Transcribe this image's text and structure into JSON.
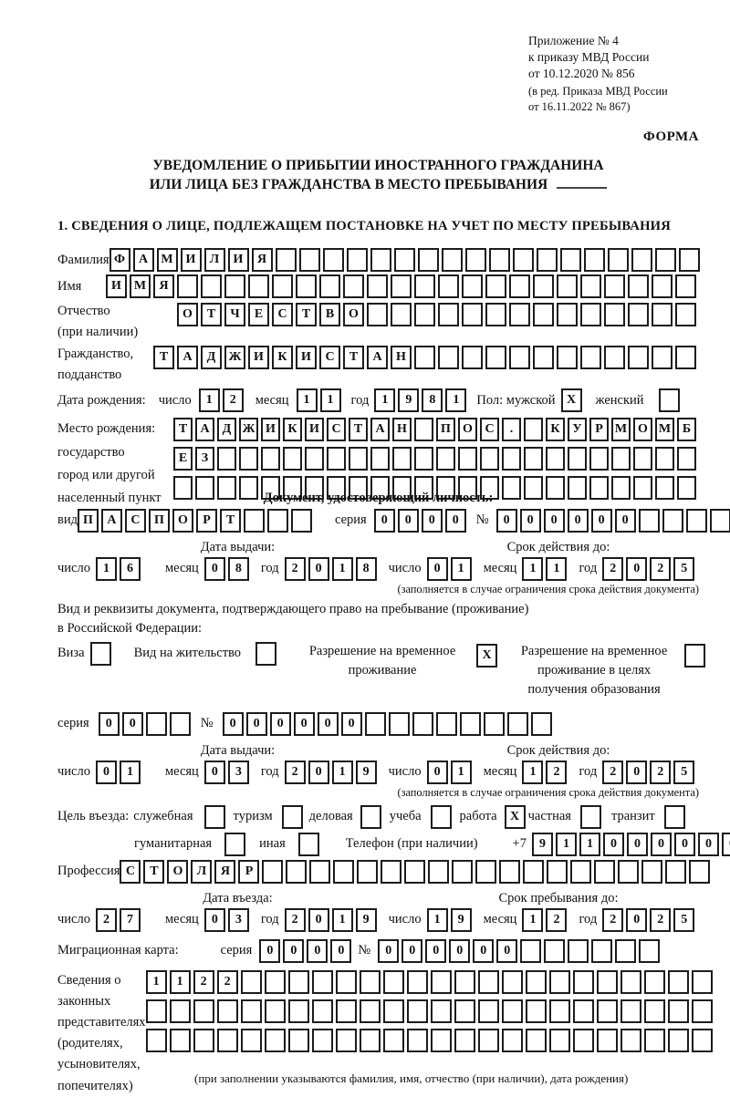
{
  "annex": {
    "lines": [
      "Приложение № 4",
      "к приказу МВД России",
      "от 10.12.2020 № 856",
      "(в ред. Приказа МВД России",
      "от 16.11.2022 № 867)"
    ],
    "form_caption": "ФОРМА"
  },
  "title": {
    "line1": "УВЕДОМЛЕНИЕ О ПРИБЫТИИ ИНОСТРАННОГО ГРАЖДАНИНА",
    "line2": "ИЛИ ЛИЦА БЕЗ ГРАЖДАНСТВА В МЕСТО ПРЕБЫВАНИЯ"
  },
  "section1_heading": "1. СВЕДЕНИЯ О ЛИЦЕ, ПОДЛЕЖАЩЕМ ПОСТАНОВКЕ НА УЧЕТ ПО МЕСТУ ПРЕБЫВАНИЯ",
  "labels": {
    "surname": "Фамилия",
    "name": "Имя",
    "patronymic": "Отчество",
    "patronymic_note": "(при наличии)",
    "citizenship1": "Гражданство,",
    "citizenship2": "подданство",
    "birth_date": "Дата рождения:",
    "day": "число",
    "month": "месяц",
    "year": "год",
    "sex": "Пол:",
    "male": "мужской",
    "female": "женский",
    "birth_place": "Место рождения:",
    "state": "государство",
    "city1": "город или другой",
    "city2": "населенный пункт",
    "identity_doc_heading": "Документ, удостоверяющий личность:",
    "kind": "вид",
    "series": "серия",
    "number": "№",
    "issue_date": "Дата выдачи:",
    "valid_until": "Срок действия до:",
    "valid_note": "(заполняется в случае ограничения срока действия документа)",
    "residence_doc1": "Вид и реквизиты документа, подтверждающего право на пребывание (проживание)",
    "residence_doc2": "в Российской Федерации:",
    "visa": "Виза",
    "residence_permit": "Вид на жительство",
    "temp_residence1": "Разрешение на временное",
    "temp_residence2": "проживание",
    "temp_residence_edu1": "Разрешение на временное",
    "temp_residence_edu2": "проживание в целях",
    "temp_residence_edu3": "получения образования",
    "entry_purpose": "Цель въезда:",
    "purpose_official": "служебная",
    "purpose_tourism": "туризм",
    "purpose_business": "деловая",
    "purpose_study": "учеба",
    "purpose_work": "работа",
    "purpose_private": "частная",
    "purpose_transit": "транзит",
    "purpose_humanitarian": "гуманитарная",
    "purpose_other": "иная",
    "phone": "Телефон (при наличии)",
    "phone_prefix": "+7",
    "profession": "Профессия",
    "entry_date": "Дата въезда:",
    "stay_until": "Срок пребывания до:",
    "migration_card": "Миграционная карта:",
    "representatives": [
      "Сведения о",
      "законных",
      "представителях",
      "(родителях,",
      "усыновителях,",
      "попечителях)"
    ],
    "representatives_note": "(при заполнении указываются фамилия, имя, отчество (при наличии), дата рождения)"
  },
  "rows": {
    "surname": {
      "len": 25,
      "value": "ФАМИЛИЯ"
    },
    "name": {
      "len": 25,
      "value": "ИМЯ"
    },
    "patronymic": {
      "len": 22,
      "value": "ОТЧЕСТВО"
    },
    "citizenship": {
      "len": 23,
      "value": "ТАДЖИКИСТАН"
    },
    "birth_day": {
      "len": 2,
      "value": "12"
    },
    "birth_month": {
      "len": 2,
      "value": "11"
    },
    "birth_year": {
      "len": 4,
      "value": "1981"
    },
    "sex_male": {
      "len": 1,
      "value": "X"
    },
    "sex_female": {
      "len": 1,
      "value": ""
    },
    "birth_place1": {
      "len": 24,
      "value": "ТАДЖИКИСТАН ПОС. КУРМОМБ"
    },
    "birth_place2": {
      "len": 24,
      "value": "ЕЗ"
    },
    "birth_place3": {
      "len": 24,
      "value": ""
    },
    "doc_kind": {
      "len": 10,
      "value": "ПАСПОРТ"
    },
    "doc_series": {
      "len": 4,
      "value": "0000"
    },
    "doc_number": {
      "len": 11,
      "value": "000000"
    },
    "doc_issue_day": {
      "len": 2,
      "value": "16"
    },
    "doc_issue_month": {
      "len": 2,
      "value": "08"
    },
    "doc_issue_year": {
      "len": 4,
      "value": "2018"
    },
    "doc_valid_day": {
      "len": 2,
      "value": "01"
    },
    "doc_valid_month": {
      "len": 2,
      "value": "11"
    },
    "doc_valid_year": {
      "len": 4,
      "value": "2025"
    },
    "visa_box": {
      "len": 1,
      "value": ""
    },
    "residence_permit_box": {
      "len": 1,
      "value": ""
    },
    "temp_residence_box": {
      "len": 1,
      "value": "X"
    },
    "temp_residence_edu_box": {
      "len": 1,
      "value": ""
    },
    "res_series": {
      "len": 4,
      "value": "00"
    },
    "res_number": {
      "len": 14,
      "value": "000000"
    },
    "res_issue_day": {
      "len": 2,
      "value": "01"
    },
    "res_issue_month": {
      "len": 2,
      "value": "03"
    },
    "res_issue_year": {
      "len": 4,
      "value": "2019"
    },
    "res_valid_day": {
      "len": 2,
      "value": "01"
    },
    "res_valid_month": {
      "len": 2,
      "value": "12"
    },
    "res_valid_year": {
      "len": 4,
      "value": "2025"
    },
    "box_official": {
      "len": 1,
      "value": ""
    },
    "box_tourism": {
      "len": 1,
      "value": ""
    },
    "box_business": {
      "len": 1,
      "value": ""
    },
    "box_study": {
      "len": 1,
      "value": ""
    },
    "box_work": {
      "len": 1,
      "value": "X"
    },
    "box_private": {
      "len": 1,
      "value": ""
    },
    "box_transit": {
      "len": 1,
      "value": ""
    },
    "box_humanitarian": {
      "len": 1,
      "value": ""
    },
    "box_other": {
      "len": 1,
      "value": ""
    },
    "phone": {
      "len": 10,
      "value": "911000000"
    },
    "profession": {
      "len": 25,
      "value": "СТОЛЯР"
    },
    "entry_day": {
      "len": 2,
      "value": "27"
    },
    "entry_month": {
      "len": 2,
      "value": "03"
    },
    "entry_year": {
      "len": 4,
      "value": "2019"
    },
    "stay_day": {
      "len": 2,
      "value": "19"
    },
    "stay_month": {
      "len": 2,
      "value": "12"
    },
    "stay_year": {
      "len": 4,
      "value": "2025"
    },
    "mig_series": {
      "len": 4,
      "value": "0000"
    },
    "mig_number": {
      "len": 12,
      "value": "000000"
    },
    "rep1": {
      "len": 24,
      "value": "1122"
    },
    "rep2": {
      "len": 24,
      "value": ""
    },
    "rep3": {
      "len": 24,
      "value": ""
    }
  },
  "colors": {
    "ink": "#1c1c1c",
    "paper": "#ffffff"
  }
}
